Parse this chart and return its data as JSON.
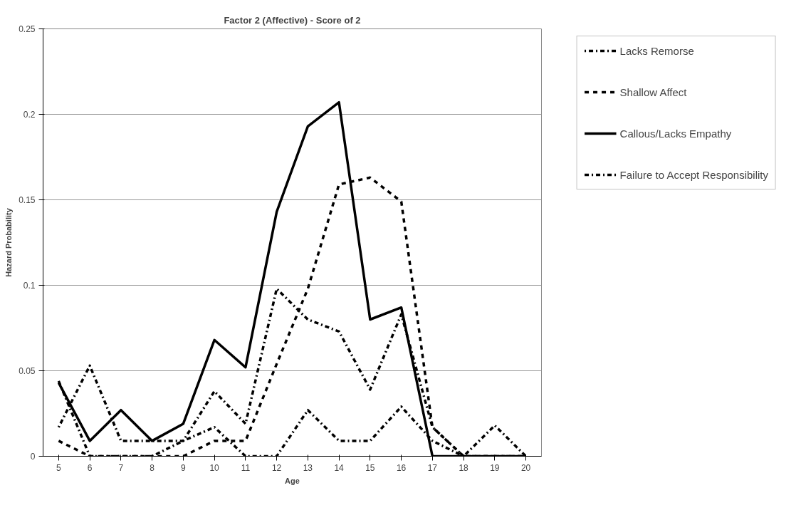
{
  "chart_data": {
    "type": "line",
    "title": "Factor 2 (Affective) - Score of 2",
    "xlabel": "Age",
    "ylabel": "Hazard Probability",
    "x": [
      5,
      6,
      7,
      8,
      9,
      10,
      11,
      12,
      13,
      14,
      15,
      16,
      17,
      18,
      19,
      20
    ],
    "series": [
      {
        "name": "Lacks Remorse",
        "color": "#000000",
        "line_style": "dotdash",
        "values": [
          0.017,
          0.053,
          0.009,
          0.009,
          0.009,
          0.038,
          0.019,
          0.098,
          0.08,
          0.073,
          0.039,
          0.083,
          0.017,
          0,
          0,
          0
        ]
      },
      {
        "name": "Shallow Affect",
        "color": "#000000",
        "line_style": "dashed",
        "values": [
          0.009,
          0,
          0,
          0,
          0,
          0.009,
          0.009,
          0.054,
          0.098,
          0.159,
          0.163,
          0.149,
          0.017,
          0,
          0,
          0
        ]
      },
      {
        "name": "Callous/Lacks Empathy",
        "color": "#000000",
        "line_style": "solid",
        "values": [
          0.043,
          0.009,
          0.027,
          0.009,
          0.019,
          0.068,
          0.052,
          0.143,
          0.193,
          0.207,
          0.08,
          0.087,
          0,
          0,
          0,
          0
        ]
      },
      {
        "name": "Failure to Accept Responsibility",
        "color": "#000000",
        "line_style": "dashdot",
        "values": [
          0.044,
          0,
          0,
          0,
          0.009,
          0.017,
          0,
          0,
          0.027,
          0.009,
          0.009,
          0.029,
          0.009,
          0,
          0.018,
          0
        ]
      }
    ],
    "xlim": [
      4.5,
      20.5
    ],
    "xticks": [
      5,
      6,
      7,
      8,
      9,
      10,
      11,
      12,
      13,
      14,
      15,
      16,
      17,
      18,
      19,
      20
    ],
    "ylim": [
      0,
      0.25
    ],
    "yticks": [
      0,
      0.05,
      0.1,
      0.15,
      0.2,
      0.25
    ],
    "grid": "y",
    "legend": "right",
    "marker": "none"
  }
}
